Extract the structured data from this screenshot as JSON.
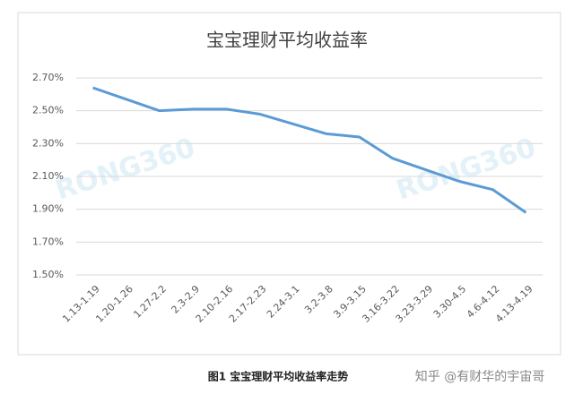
{
  "chart_data": {
    "type": "line",
    "title": "宝宝理财平均收益率",
    "categories": [
      "1.13-1.19",
      "1.20-1.26",
      "1.27-2.2",
      "2.3-2.9",
      "2.10-2.16",
      "2.17-2.23",
      "2.24-3.1",
      "3.2-3.8",
      "3.9-3.15",
      "3.16-3.22",
      "3.23-3.29",
      "3.30-4.5",
      "4.6-4.12",
      "4.13-4.19"
    ],
    "values": [
      2.64,
      2.57,
      2.5,
      2.51,
      2.51,
      2.48,
      2.42,
      2.36,
      2.34,
      2.21,
      2.14,
      2.07,
      2.02,
      1.88
    ],
    "color": "#5b9bd5",
    "ylim": [
      1.5,
      2.7
    ],
    "yticks": [
      {
        "value": 1.5,
        "label": "1.50%"
      },
      {
        "value": 1.7,
        "label": "1.70%"
      },
      {
        "value": 1.9,
        "label": "1.90%"
      },
      {
        "value": 2.1,
        "label": "2.10%"
      },
      {
        "value": 2.3,
        "label": "2.30%"
      },
      {
        "value": 2.5,
        "label": "2.50%"
      },
      {
        "value": 2.7,
        "label": "2.70%"
      }
    ],
    "grid": true,
    "watermarks": [
      "RONG360",
      "RONG360"
    ],
    "caption": "图1  宝宝理财平均收益率走势",
    "source": "知乎 @有财华的宇宙哥"
  }
}
